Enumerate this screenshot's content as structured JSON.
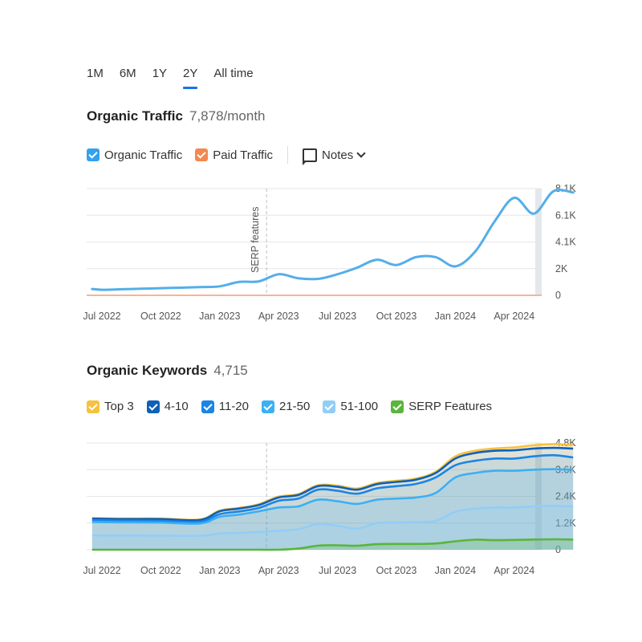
{
  "tabs": [
    {
      "label": "1M",
      "active": false
    },
    {
      "label": "6M",
      "active": false
    },
    {
      "label": "1Y",
      "active": false
    },
    {
      "label": "2Y",
      "active": true
    },
    {
      "label": "All time",
      "active": false
    }
  ],
  "traffic": {
    "title": "Organic Traffic",
    "value": "7,878/month",
    "legend": [
      {
        "label": "Organic Traffic",
        "color": "#33a1ee"
      },
      {
        "label": "Paid Traffic",
        "color": "#f5874f"
      }
    ],
    "notes_label": "Notes"
  },
  "keywords": {
    "title": "Organic Keywords",
    "value": "4,715",
    "legend": [
      {
        "label": "Top 3",
        "color": "#f6c23e"
      },
      {
        "label": "4-10",
        "color": "#1060b8"
      },
      {
        "label": "11-20",
        "color": "#1a85e8"
      },
      {
        "label": "21-50",
        "color": "#3ab0f5"
      },
      {
        "label": "51-100",
        "color": "#92cdf7"
      },
      {
        "label": "SERP Features",
        "color": "#5ab53a"
      }
    ]
  },
  "chart_data": [
    {
      "type": "line",
      "x_ticks": [
        "Jul 2022",
        "Oct 2022",
        "Jan 2023",
        "Apr 2023",
        "Jul 2023",
        "Oct 2023",
        "Jan 2024",
        "Apr 2024"
      ],
      "y_ticks": [
        "0",
        "2K",
        "4.1K",
        "6.1K",
        "8.1K"
      ],
      "ylim": [
        0,
        8100
      ],
      "annotation": {
        "label": "SERP features",
        "x": "Apr 2023"
      },
      "series": [
        {
          "name": "Organic Traffic",
          "color": "#55aee8",
          "x": [
            5.5,
            6,
            7,
            8,
            9,
            10,
            11,
            12,
            13,
            14,
            15,
            16,
            17,
            18,
            19,
            20,
            21,
            22,
            23,
            24,
            25,
            26,
            27,
            28,
            29,
            30
          ],
          "values": [
            480,
            420,
            460,
            500,
            540,
            580,
            620,
            680,
            1020,
            1060,
            1600,
            1300,
            1250,
            1600,
            2100,
            2700,
            2300,
            2900,
            2900,
            2200,
            3300,
            5600,
            7400,
            6200,
            7900,
            7800
          ]
        },
        {
          "name": "Paid Traffic",
          "color": "#f5b595",
          "x": [
            5.5,
            30
          ],
          "values": [
            0,
            0
          ]
        }
      ]
    },
    {
      "type": "area",
      "x_ticks": [
        "Jul 2022",
        "Oct 2022",
        "Jan 2023",
        "Apr 2023",
        "Jul 2023",
        "Oct 2023",
        "Jan 2024",
        "Apr 2024"
      ],
      "y_ticks": [
        "0",
        "1.2K",
        "2.4K",
        "3.6K",
        "4.8K"
      ],
      "ylim": [
        0,
        4800
      ],
      "annotation": {
        "x": "Apr 2023"
      },
      "x": [
        5.5,
        7,
        9,
        11,
        12,
        13,
        14,
        15,
        16,
        17,
        18,
        19,
        20,
        21,
        22,
        23,
        24,
        25,
        26,
        27,
        28,
        29,
        30
      ],
      "series": [
        {
          "name": "Top 3",
          "color": "#f6c23e",
          "values": [
            1420,
            1400,
            1400,
            1360,
            1760,
            1880,
            2050,
            2390,
            2500,
            2900,
            2880,
            2750,
            3000,
            3100,
            3200,
            3500,
            4200,
            4450,
            4550,
            4600,
            4700,
            4750,
            4700
          ]
        },
        {
          "name": "4-10",
          "color": "#1060b8",
          "values": [
            1400,
            1380,
            1380,
            1340,
            1730,
            1850,
            2010,
            2350,
            2460,
            2860,
            2830,
            2700,
            2950,
            3050,
            3150,
            3450,
            4100,
            4350,
            4450,
            4470,
            4550,
            4580,
            4550
          ]
        },
        {
          "name": "11-20",
          "color": "#1a85e8",
          "values": [
            1330,
            1310,
            1300,
            1260,
            1600,
            1720,
            1880,
            2200,
            2300,
            2700,
            2650,
            2520,
            2760,
            2860,
            2960,
            3250,
            3800,
            4000,
            4100,
            4100,
            4200,
            4250,
            4150
          ]
        },
        {
          "name": "21-50",
          "color": "#3ab0f5",
          "values": [
            1250,
            1230,
            1220,
            1180,
            1480,
            1580,
            1730,
            1900,
            1950,
            2250,
            2180,
            2060,
            2250,
            2300,
            2350,
            2550,
            3250,
            3450,
            3550,
            3550,
            3600,
            3620,
            3600
          ]
        },
        {
          "name": "51-100",
          "color": "#92cdf7",
          "values": [
            650,
            640,
            630,
            630,
            730,
            760,
            800,
            850,
            920,
            1150,
            1080,
            950,
            1200,
            1230,
            1250,
            1300,
            1700,
            1850,
            1900,
            1900,
            1950,
            1970,
            1950
          ]
        },
        {
          "name": "SERP Features",
          "color": "#5ab53a",
          "values": [
            0,
            0,
            0,
            0,
            0,
            0,
            0,
            0,
            50,
            180,
            200,
            180,
            250,
            260,
            260,
            280,
            380,
            450,
            430,
            440,
            460,
            470,
            460
          ]
        }
      ]
    }
  ]
}
